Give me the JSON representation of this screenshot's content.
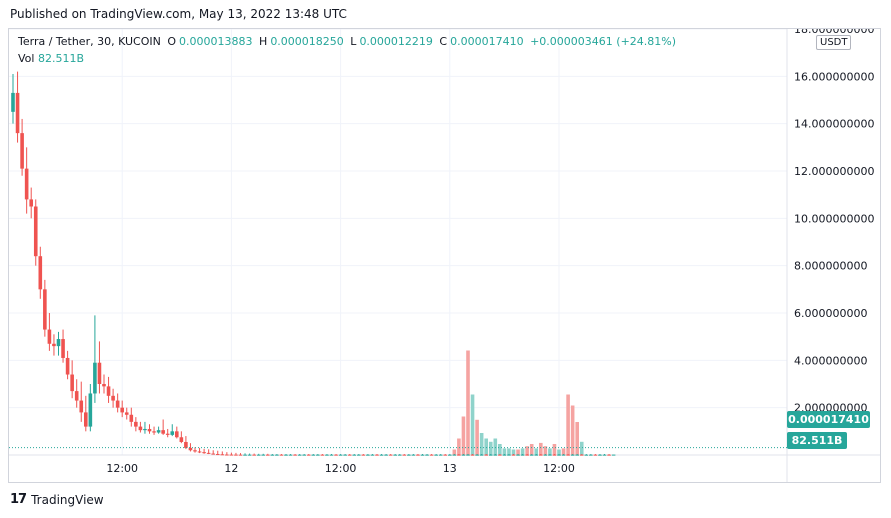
{
  "published": "Published on TradingView.com, May 13, 2022 13:48 UTC",
  "legend": {
    "symbol": "Terra / Tether, 30, KUCOIN",
    "o_label": "O",
    "o_value": "0.000013883",
    "h_label": "H",
    "h_value": "0.000018250",
    "l_label": "L",
    "l_value": "0.000012219",
    "c_label": "C",
    "c_value": "0.000017410",
    "change": "+0.000003461 (+24.81%)",
    "vol_label": "Vol",
    "vol_value": "82.511B"
  },
  "currency": "USDT",
  "price_tag": "0.000017410",
  "volume_tag": "82.511B",
  "footer": {
    "logo_mark": "17",
    "brand": "TradingView"
  },
  "colors": {
    "up": "#26a69a",
    "down": "#ef5350",
    "vol_up": "#8fd3cb",
    "vol_down": "#f5a3a1",
    "grid": "#f0f3fa"
  },
  "chart_data": {
    "type": "candlestick",
    "ylim": [
      0,
      18
    ],
    "y_ticks": [
      "2.000000000",
      "4.000000000",
      "6.000000000",
      "8.000000000",
      "10.000000000",
      "12.000000000",
      "14.000000000",
      "16.000000000",
      "18.000000000"
    ],
    "x_ticks": [
      {
        "label": "12:00",
        "index": 24
      },
      {
        "label": "12",
        "index": 48
      },
      {
        "label": "12:00",
        "index": 72
      },
      {
        "label": "13",
        "index": 96
      },
      {
        "label": "12:00",
        "index": 120
      }
    ],
    "ohlc": [
      [
        14.5,
        16.1,
        14.0,
        15.3
      ],
      [
        15.3,
        16.2,
        13.2,
        13.6
      ],
      [
        13.6,
        14.2,
        11.8,
        12.1
      ],
      [
        12.1,
        13.0,
        10.2,
        10.8
      ],
      [
        10.8,
        11.3,
        10.0,
        10.5
      ],
      [
        10.5,
        10.8,
        8.0,
        8.4
      ],
      [
        8.4,
        8.8,
        6.6,
        7.0
      ],
      [
        7.0,
        7.4,
        5.0,
        5.3
      ],
      [
        5.3,
        6.0,
        4.4,
        4.7
      ],
      [
        4.7,
        5.1,
        4.2,
        4.6
      ],
      [
        4.6,
        5.2,
        4.2,
        4.9
      ],
      [
        4.9,
        5.3,
        3.9,
        4.1
      ],
      [
        4.1,
        4.4,
        3.2,
        3.4
      ],
      [
        3.4,
        4.0,
        2.4,
        2.7
      ],
      [
        2.7,
        3.2,
        2.0,
        2.3
      ],
      [
        2.3,
        3.1,
        1.4,
        1.8
      ],
      [
        1.8,
        2.5,
        1.0,
        1.2
      ],
      [
        1.2,
        3.0,
        1.0,
        2.6
      ],
      [
        2.6,
        5.9,
        2.2,
        3.9
      ],
      [
        3.9,
        4.8,
        2.6,
        3.0
      ],
      [
        3.0,
        3.4,
        2.6,
        2.9
      ],
      [
        2.9,
        3.3,
        2.2,
        2.5
      ],
      [
        2.5,
        2.8,
        2.0,
        2.3
      ],
      [
        2.3,
        2.6,
        1.8,
        2.0
      ],
      [
        2.0,
        2.3,
        1.6,
        1.8
      ],
      [
        1.8,
        2.0,
        1.5,
        1.7
      ],
      [
        1.7,
        2.0,
        1.2,
        1.4
      ],
      [
        1.4,
        1.6,
        1.0,
        1.2
      ],
      [
        1.2,
        1.4,
        0.95,
        1.05
      ],
      [
        1.05,
        1.4,
        0.9,
        1.1
      ],
      [
        1.1,
        1.3,
        0.9,
        1.0
      ],
      [
        1.0,
        1.2,
        0.85,
        0.95
      ],
      [
        0.95,
        1.2,
        0.9,
        1.05
      ],
      [
        1.05,
        1.5,
        0.85,
        0.9
      ],
      [
        0.9,
        1.1,
        0.75,
        0.85
      ],
      [
        0.85,
        1.3,
        0.8,
        1.0
      ],
      [
        1.0,
        1.2,
        0.7,
        0.75
      ],
      [
        0.75,
        1.0,
        0.5,
        0.55
      ],
      [
        0.55,
        0.8,
        0.25,
        0.3
      ],
      [
        0.3,
        0.5,
        0.15,
        0.2
      ],
      [
        0.2,
        0.32,
        0.1,
        0.15
      ],
      [
        0.15,
        0.3,
        0.08,
        0.12
      ],
      [
        0.12,
        0.26,
        0.05,
        0.09
      ],
      [
        0.09,
        0.24,
        0.04,
        0.06
      ],
      [
        0.06,
        0.2,
        0.02,
        0.04
      ],
      [
        0.04,
        0.18,
        0.01,
        0.03
      ],
      [
        0.03,
        0.15,
        0.01,
        0.02
      ],
      [
        0.02,
        0.12,
        0.005,
        0.018
      ],
      [
        0.018,
        0.1,
        0.005,
        0.016
      ],
      [
        0.016,
        0.09,
        0.005,
        0.015
      ],
      [
        0.015,
        0.08,
        0.004,
        0.014
      ],
      [
        0.014,
        0.07,
        0.004,
        0.014
      ],
      [
        0.014,
        0.06,
        0.003,
        0.015
      ],
      [
        0.015,
        0.06,
        0.003,
        0.014
      ],
      [
        0.014,
        0.05,
        0.003,
        0.014
      ],
      [
        0.014,
        0.05,
        0.003,
        0.015
      ],
      [
        0.015,
        0.05,
        0.003,
        0.014
      ],
      [
        0.014,
        0.04,
        0.003,
        0.014
      ],
      [
        0.014,
        0.04,
        0.003,
        0.015
      ],
      [
        0.015,
        0.04,
        0.003,
        0.014
      ],
      [
        0.014,
        0.04,
        0.003,
        0.014
      ],
      [
        0.014,
        0.04,
        0.003,
        0.015
      ],
      [
        0.015,
        0.04,
        0.003,
        0.014
      ],
      [
        0.014,
        0.04,
        0.003,
        0.014
      ],
      [
        0.014,
        0.04,
        0.003,
        0.015
      ],
      [
        0.015,
        0.04,
        0.003,
        0.014
      ],
      [
        0.014,
        0.04,
        0.003,
        0.014
      ],
      [
        0.014,
        0.04,
        0.003,
        0.015
      ],
      [
        0.015,
        0.04,
        0.003,
        0.014
      ],
      [
        0.014,
        0.04,
        0.003,
        0.014
      ],
      [
        0.014,
        0.04,
        0.003,
        0.015
      ],
      [
        0.015,
        0.04,
        0.003,
        0.014
      ],
      [
        0.014,
        0.04,
        0.003,
        0.014
      ],
      [
        0.014,
        0.04,
        0.003,
        0.015
      ],
      [
        0.015,
        0.04,
        0.003,
        0.014
      ],
      [
        0.014,
        0.04,
        0.003,
        0.014
      ],
      [
        0.014,
        0.04,
        0.003,
        0.015
      ],
      [
        0.015,
        0.04,
        0.003,
        0.014
      ],
      [
        0.014,
        0.04,
        0.003,
        0.014
      ],
      [
        0.014,
        0.04,
        0.003,
        0.015
      ],
      [
        0.015,
        0.04,
        0.003,
        0.014
      ],
      [
        0.014,
        0.04,
        0.003,
        0.014
      ],
      [
        0.014,
        0.04,
        0.003,
        0.015
      ],
      [
        0.015,
        0.04,
        0.003,
        0.014
      ],
      [
        0.014,
        0.04,
        0.003,
        0.014
      ],
      [
        0.014,
        0.04,
        0.003,
        0.015
      ],
      [
        0.015,
        0.04,
        0.003,
        0.014
      ],
      [
        0.014,
        0.04,
        0.003,
        0.014
      ],
      [
        0.014,
        0.04,
        0.003,
        0.015
      ],
      [
        0.015,
        0.04,
        0.003,
        0.014
      ],
      [
        0.014,
        0.04,
        0.003,
        0.014
      ],
      [
        0.014,
        0.04,
        0.003,
        0.015
      ],
      [
        0.015,
        0.04,
        0.003,
        0.014
      ],
      [
        0.014,
        0.04,
        0.003,
        0.014
      ],
      [
        0.014,
        0.04,
        0.003,
        0.015
      ],
      [
        0.015,
        0.04,
        0.003,
        0.014
      ],
      [
        0.014,
        0.04,
        0.003,
        0.014
      ],
      [
        0.014,
        0.04,
        0.003,
        0.015
      ],
      [
        0.015,
        0.04,
        0.003,
        0.014
      ],
      [
        0.014,
        0.04,
        0.003,
        0.014
      ],
      [
        0.014,
        0.04,
        0.003,
        0.015
      ],
      [
        0.015,
        0.04,
        0.003,
        0.014
      ],
      [
        0.014,
        0.04,
        0.003,
        0.014
      ],
      [
        0.014,
        0.04,
        0.003,
        0.015
      ],
      [
        0.015,
        0.04,
        0.003,
        0.014
      ],
      [
        0.014,
        0.04,
        0.003,
        0.014
      ],
      [
        0.014,
        0.04,
        0.003,
        0.015
      ],
      [
        0.015,
        0.04,
        0.003,
        0.014
      ],
      [
        0.014,
        0.04,
        0.003,
        0.014
      ],
      [
        0.014,
        0.04,
        0.003,
        0.015
      ],
      [
        0.015,
        0.04,
        0.003,
        0.014
      ],
      [
        0.014,
        0.04,
        0.003,
        0.014
      ],
      [
        0.014,
        0.04,
        0.003,
        0.015
      ],
      [
        0.015,
        0.04,
        0.003,
        0.014
      ],
      [
        0.014,
        0.04,
        0.003,
        0.014
      ],
      [
        0.014,
        0.04,
        0.003,
        0.015
      ],
      [
        0.015,
        0.04,
        0.003,
        0.014
      ],
      [
        0.014,
        0.04,
        0.003,
        0.014
      ],
      [
        0.014,
        0.04,
        0.003,
        0.015
      ],
      [
        0.015,
        0.04,
        0.003,
        0.014
      ],
      [
        0.014,
        0.04,
        0.003,
        0.014
      ],
      [
        0.014,
        0.04,
        0.003,
        0.015
      ],
      [
        0.015,
        0.04,
        0.003,
        0.014
      ],
      [
        0.014,
        0.04,
        0.003,
        0.014
      ],
      [
        0.014,
        0.04,
        0.003,
        0.015
      ],
      [
        0.015,
        0.04,
        0.003,
        0.014
      ],
      [
        0.014,
        0.04,
        0.003,
        0.014
      ],
      [
        0.014,
        0.04,
        0.003,
        0.015
      ],
      [
        0.015,
        0.04,
        0.003,
        0.014
      ],
      [
        0.014,
        0.04,
        0.003,
        0.014
      ],
      [
        0.014,
        0.04,
        0.003,
        0.015
      ],
      [
        0.015,
        0.04,
        0.003,
        0.014
      ],
      [
        0.013883,
        0.01825,
        0.012219,
        0.01741
      ]
    ],
    "volume_rel": {
      "start_index": 97,
      "values": [
        0.05,
        0.15,
        0.35,
        0.95,
        0.55,
        0.32,
        0.2,
        0.15,
        0.12,
        0.15,
        0.1,
        0.06,
        0.06,
        0.05,
        0.05,
        0.06,
        0.08,
        0.1,
        0.06,
        0.11,
        0.08,
        0.06,
        0.1,
        0.05,
        0.06,
        0.55,
        0.45,
        0.3,
        0.12
      ],
      "down": [
        1,
        1,
        1,
        1,
        0,
        1,
        0,
        0,
        0,
        0,
        0,
        0,
        0,
        0,
        1,
        0,
        1,
        1,
        0,
        1,
        1,
        0,
        1,
        0,
        1,
        1,
        1,
        1,
        0
      ]
    }
  }
}
